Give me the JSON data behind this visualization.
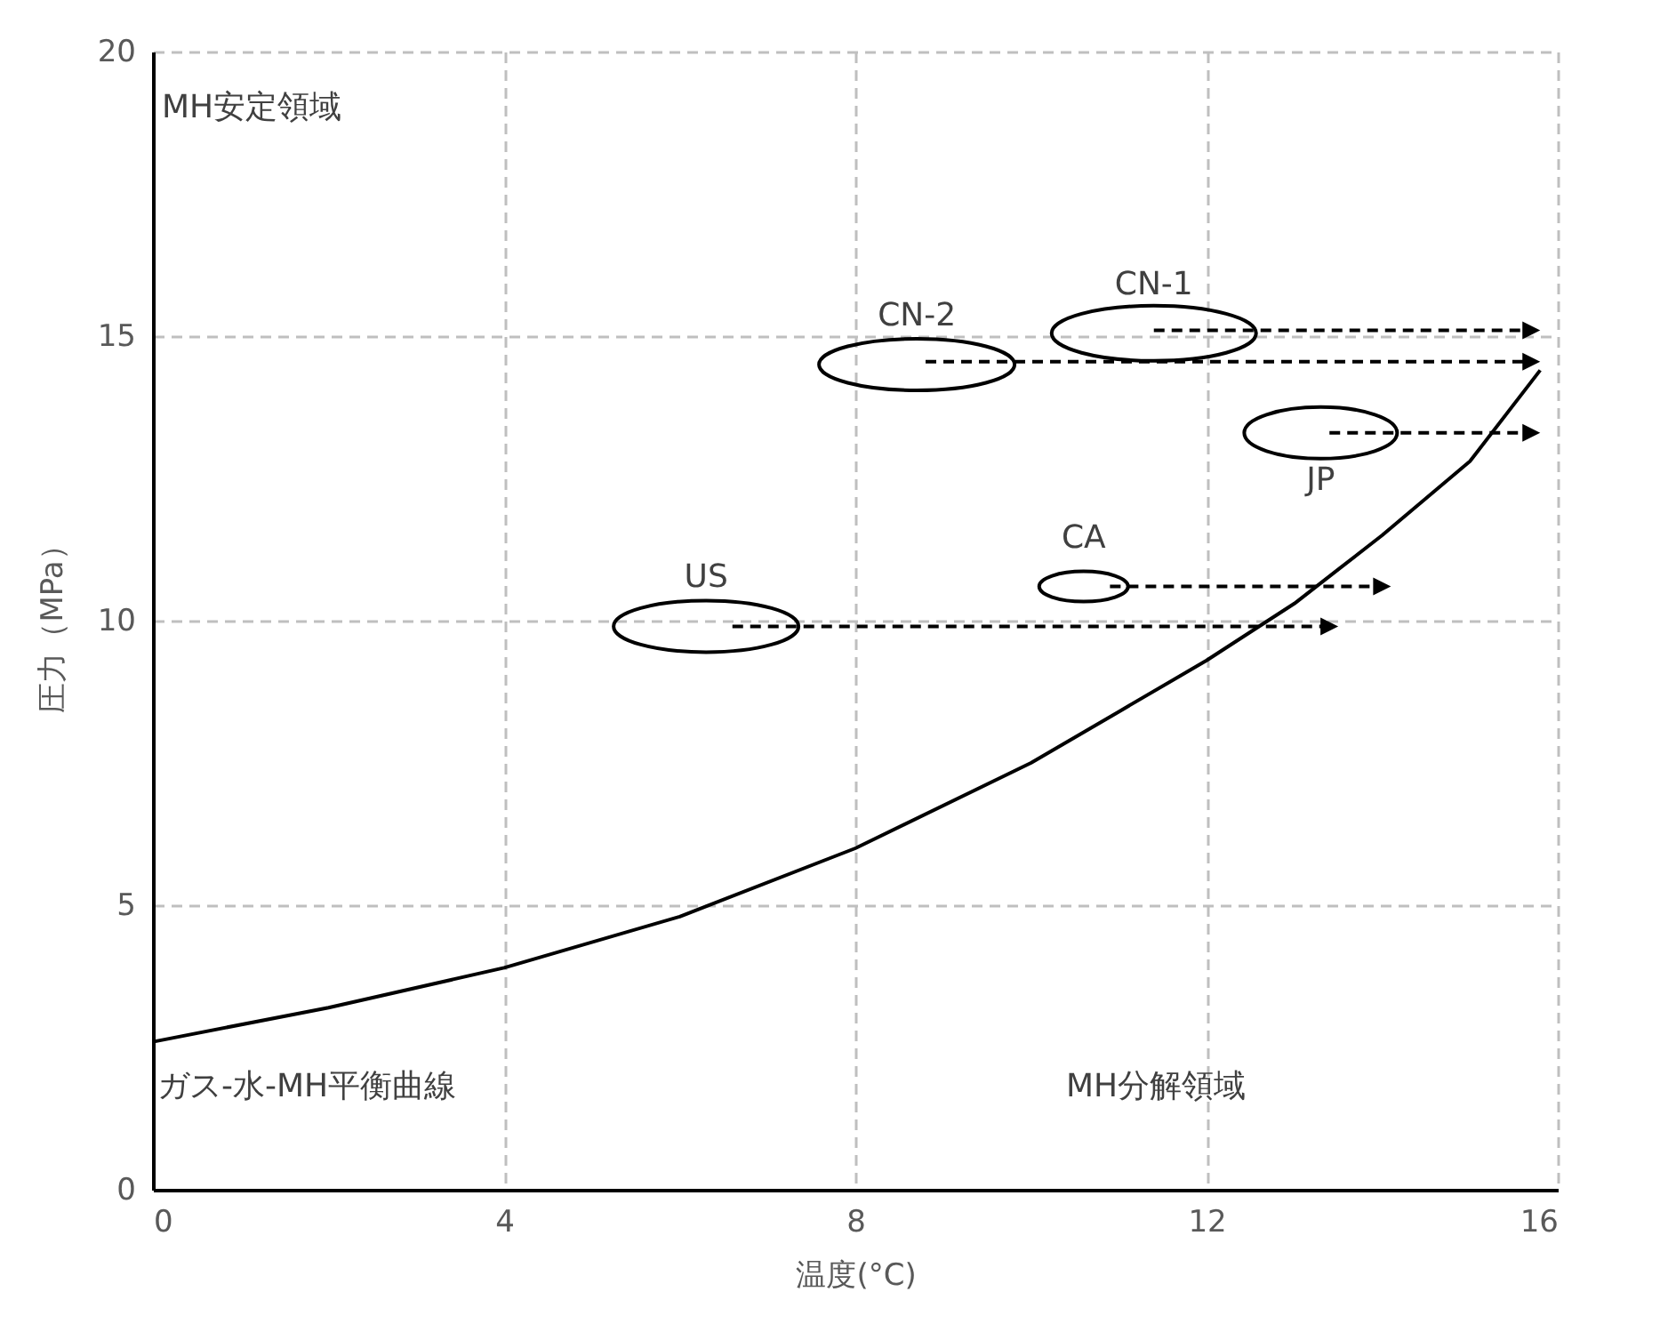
{
  "chart_data": {
    "type": "line",
    "xlabel": "温度(°C)",
    "ylabel": "圧力（MPa）",
    "xlim": [
      0,
      16
    ],
    "ylim": [
      0,
      20
    ],
    "xticks": [
      0,
      4,
      8,
      12,
      16
    ],
    "yticks": [
      0,
      5,
      10,
      15,
      20
    ],
    "grid": true,
    "marker": "none",
    "annotations": [
      "MH安定領域",
      "ガス-水-MH平衡曲線",
      "MH分解領域",
      "US",
      "CA",
      "CN-2",
      "CN-1",
      "JP"
    ],
    "series": [
      {
        "color": "#000000",
        "x": [
          0,
          2,
          4,
          6,
          8,
          10,
          11,
          12,
          13,
          13.5,
          14,
          15,
          15.8
        ],
        "values": [
          2.6,
          3.2,
          3.9,
          4.8,
          6.0,
          7.5,
          8.4,
          9.3,
          10.3,
          10.9,
          11.5,
          12.8,
          14.4
        ]
      }
    ]
  }
}
